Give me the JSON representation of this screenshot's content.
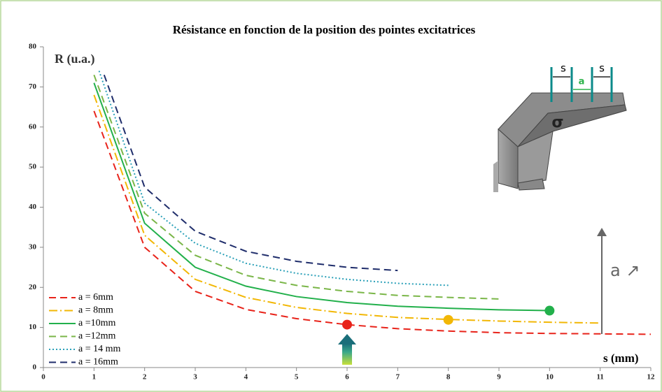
{
  "chart_data": {
    "type": "line",
    "title": "Résistance en fonction de la position des pointes excitatrices",
    "y_label": "R (u.a.)",
    "x_label": "s (mm)",
    "xlim": [
      0,
      12
    ],
    "ylim": [
      0,
      80
    ],
    "xticks": [
      0,
      1,
      2,
      3,
      4,
      5,
      6,
      7,
      8,
      9,
      10,
      11,
      12
    ],
    "yticks": [
      0,
      10,
      20,
      30,
      40,
      50,
      60,
      70,
      80
    ],
    "legend": "lower-left",
    "series": [
      {
        "name": "a = 6mm",
        "color": "#e8231a",
        "style": "dashed",
        "x": [
          1,
          2,
          3,
          4,
          5,
          6,
          7,
          8,
          9,
          10,
          11,
          12
        ],
        "values": [
          64,
          30,
          19,
          14.5,
          12.2,
          10.7,
          9.7,
          9.1,
          8.7,
          8.5,
          8.4,
          8.3
        ]
      },
      {
        "name": "a = 8mm",
        "color": "#f2b705",
        "style": "dashdot",
        "x": [
          1,
          2,
          3,
          4,
          5,
          6,
          7,
          8,
          9,
          10,
          11
        ],
        "values": [
          68,
          33,
          22,
          17.5,
          15,
          13.5,
          12.5,
          12,
          11.6,
          11.3,
          11.1
        ]
      },
      {
        "name": "a =10mm",
        "color": "#22b04b",
        "style": "solid",
        "x": [
          1,
          2,
          3,
          4,
          5,
          6,
          7,
          8,
          9,
          10
        ],
        "values": [
          71,
          36,
          25,
          20.3,
          17.7,
          16.2,
          15.3,
          14.8,
          14.4,
          14.2
        ]
      },
      {
        "name": "a =12mm",
        "color": "#7ab648",
        "style": "dashed",
        "x": [
          1,
          2,
          3,
          4,
          5,
          6,
          7,
          8,
          9
        ],
        "values": [
          73,
          38.5,
          28,
          23,
          20.5,
          19,
          18,
          17.5,
          17.1
        ]
      },
      {
        "name": "a = 14 mm",
        "color": "#2aa0b8",
        "style": "dotted",
        "x": [
          1.1,
          2,
          3,
          4,
          5,
          6,
          7,
          8
        ],
        "values": [
          74,
          41,
          31,
          26,
          23.5,
          22,
          21,
          20.5
        ]
      },
      {
        "name": "a = 16mm",
        "color": "#1f2d6b",
        "style": "dashed",
        "x": [
          1.2,
          2,
          3,
          4,
          5,
          6,
          7
        ],
        "values": [
          73,
          45,
          34,
          29,
          26.5,
          25,
          24.2
        ]
      }
    ],
    "points": [
      {
        "x": 6,
        "y": 10.7,
        "color": "#e8231a"
      },
      {
        "x": 8,
        "y": 11.9,
        "color": "#f2b705"
      },
      {
        "x": 10,
        "y": 14.2,
        "color": "#22b04b"
      }
    ],
    "annotation": "a ↗",
    "diagram_labels": [
      "s",
      "a",
      "s",
      "σ"
    ]
  }
}
